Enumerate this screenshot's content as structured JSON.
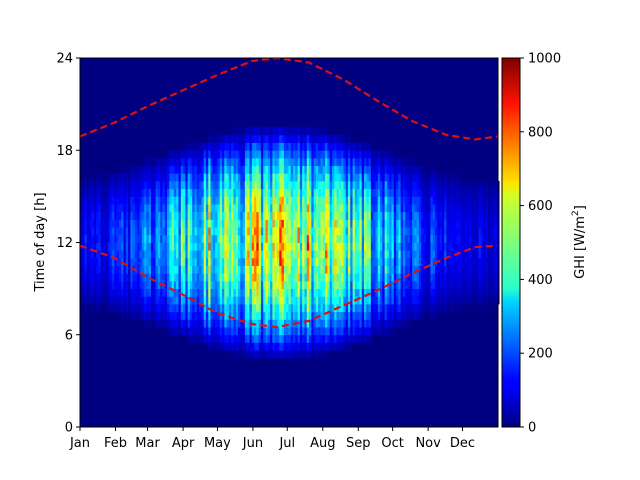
{
  "chart_data": {
    "type": "heatmap",
    "title": "",
    "xlabel": "",
    "ylabel": "Time of day [h]",
    "x_tick_labels": [
      "Jan",
      "Feb",
      "Mar",
      "Apr",
      "May",
      "Jun",
      "Jul",
      "Aug",
      "Sep",
      "Oct",
      "Nov",
      "Dec"
    ],
    "x_tick_days": [
      0,
      31,
      59,
      90,
      120,
      151,
      181,
      212,
      243,
      273,
      304,
      334
    ],
    "xlim_days": [
      0,
      365
    ],
    "y_ticks": [
      0,
      6,
      12,
      18,
      24
    ],
    "ylim": [
      0,
      24
    ],
    "colorbar": {
      "label_main": "GHI [W/m",
      "label_sup": "2",
      "label_end": "]",
      "ticks": [
        0,
        200,
        400,
        600,
        800,
        1000
      ],
      "range": [
        0,
        1000
      ],
      "colormap": "jet"
    },
    "peak_ghi_by_month": [
      {
        "month": "Jan",
        "peak": 170
      },
      {
        "month": "Feb",
        "peak": 260
      },
      {
        "month": "Mar",
        "peak": 420
      },
      {
        "month": "Apr",
        "peak": 700
      },
      {
        "month": "May",
        "peak": 750
      },
      {
        "month": "Jun",
        "peak": 800
      },
      {
        "month": "Jul",
        "peak": 820
      },
      {
        "month": "Aug",
        "peak": 700
      },
      {
        "month": "Sep",
        "peak": 520
      },
      {
        "month": "Oct",
        "peak": 320
      },
      {
        "month": "Nov",
        "peak": 200
      },
      {
        "month": "Dec",
        "peak": 150
      }
    ],
    "overlay_lines": {
      "color": "#e01010",
      "style": "dashed",
      "upper": [
        {
          "day": 0,
          "hour": 18.9
        },
        {
          "day": 30,
          "hour": 19.8
        },
        {
          "day": 60,
          "hour": 20.9
        },
        {
          "day": 90,
          "hour": 21.9
        },
        {
          "day": 120,
          "hour": 22.9
        },
        {
          "day": 150,
          "hour": 23.8
        },
        {
          "day": 172,
          "hour": 24.0
        },
        {
          "day": 200,
          "hour": 23.7
        },
        {
          "day": 230,
          "hour": 22.6
        },
        {
          "day": 260,
          "hour": 21.2
        },
        {
          "day": 290,
          "hour": 19.9
        },
        {
          "day": 320,
          "hour": 19.0
        },
        {
          "day": 345,
          "hour": 18.7
        },
        {
          "day": 365,
          "hour": 18.9
        }
      ],
      "lower": [
        {
          "day": 0,
          "hour": 11.8
        },
        {
          "day": 30,
          "hour": 11.0
        },
        {
          "day": 60,
          "hour": 9.7
        },
        {
          "day": 90,
          "hour": 8.6
        },
        {
          "day": 120,
          "hour": 7.4
        },
        {
          "day": 150,
          "hour": 6.7
        },
        {
          "day": 172,
          "hour": 6.5
        },
        {
          "day": 200,
          "hour": 6.9
        },
        {
          "day": 230,
          "hour": 7.9
        },
        {
          "day": 260,
          "hour": 8.9
        },
        {
          "day": 290,
          "hour": 10.0
        },
        {
          "day": 320,
          "hour": 11.0
        },
        {
          "day": 345,
          "hour": 11.7
        },
        {
          "day": 365,
          "hour": 11.8
        }
      ]
    }
  }
}
